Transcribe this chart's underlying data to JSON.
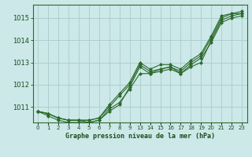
{
  "title": "Graphe pression niveau de la mer (hPa)",
  "bg_color": "#cce8e8",
  "grid_color": "#aacccc",
  "line_color": "#2d6a2d",
  "xlabel_color": "#1a4d1a",
  "series": [
    {
      "x": [
        0,
        1,
        2,
        3,
        4,
        5,
        6,
        7,
        8,
        9,
        10,
        11,
        12,
        13,
        14,
        15,
        16,
        17,
        18,
        19,
        20
      ],
      "y": [
        1010.8,
        1010.7,
        1010.5,
        1010.4,
        1010.4,
        1010.4,
        1010.5,
        1011.0,
        1011.5,
        1012.0,
        1012.9,
        1012.6,
        1012.7,
        1012.8,
        1012.6,
        1013.0,
        1013.3,
        1014.1,
        1015.0,
        1015.2,
        1015.2
      ]
    },
    {
      "x": [
        0,
        1,
        2,
        3,
        4,
        5,
        6,
        7,
        8,
        9,
        10,
        11,
        12,
        13,
        14,
        15,
        16,
        17,
        18,
        19,
        20
      ],
      "y": [
        1010.8,
        1010.6,
        1010.4,
        1010.3,
        1010.3,
        1010.3,
        1010.4,
        1010.9,
        1011.2,
        1011.8,
        1012.5,
        1012.5,
        1012.7,
        1012.8,
        1012.5,
        1012.8,
        1013.0,
        1014.0,
        1014.9,
        1015.1,
        1015.2
      ]
    },
    {
      "x": [
        0,
        1,
        2,
        3,
        4,
        5,
        6,
        7,
        8,
        9,
        10,
        11,
        12,
        13,
        14,
        15,
        16,
        17,
        18,
        19,
        20
      ],
      "y": [
        1010.8,
        1010.7,
        1010.5,
        1010.4,
        1010.4,
        1010.4,
        1010.5,
        1011.1,
        1011.6,
        1012.1,
        1013.0,
        1012.7,
        1012.9,
        1012.9,
        1012.7,
        1013.1,
        1013.4,
        1014.2,
        1015.1,
        1015.2,
        1015.3
      ]
    },
    {
      "x": [
        0,
        1,
        2,
        3,
        4,
        5,
        6,
        7,
        8,
        9,
        10,
        11,
        12,
        13,
        14,
        15,
        16,
        17,
        18,
        19,
        20
      ],
      "y": [
        1010.8,
        1010.7,
        1010.5,
        1010.4,
        1010.4,
        1010.3,
        1010.4,
        1010.8,
        1011.1,
        1011.9,
        1012.8,
        1012.5,
        1012.6,
        1012.7,
        1012.5,
        1012.9,
        1013.2,
        1013.9,
        1014.8,
        1015.0,
        1015.1
      ]
    }
  ],
  "xtick_positions": [
    0,
    1,
    2,
    3,
    4,
    5,
    6,
    7,
    8,
    9,
    10,
    11,
    12,
    13,
    14,
    15,
    16,
    17,
    18,
    19,
    20
  ],
  "xtick_labels": [
    "0",
    "1",
    "2",
    "3",
    "4",
    "5",
    "6",
    "7",
    "8",
    "9",
    "13",
    "14",
    "15",
    "16",
    "17",
    "18",
    "19",
    "20",
    "21",
    "22",
    "23"
  ],
  "xlim": [
    -0.5,
    20.5
  ],
  "ylim": [
    1010.3,
    1015.6
  ],
  "yticks": [
    1011,
    1012,
    1013,
    1014,
    1015
  ],
  "figsize": [
    3.2,
    2.0
  ],
  "dpi": 100
}
